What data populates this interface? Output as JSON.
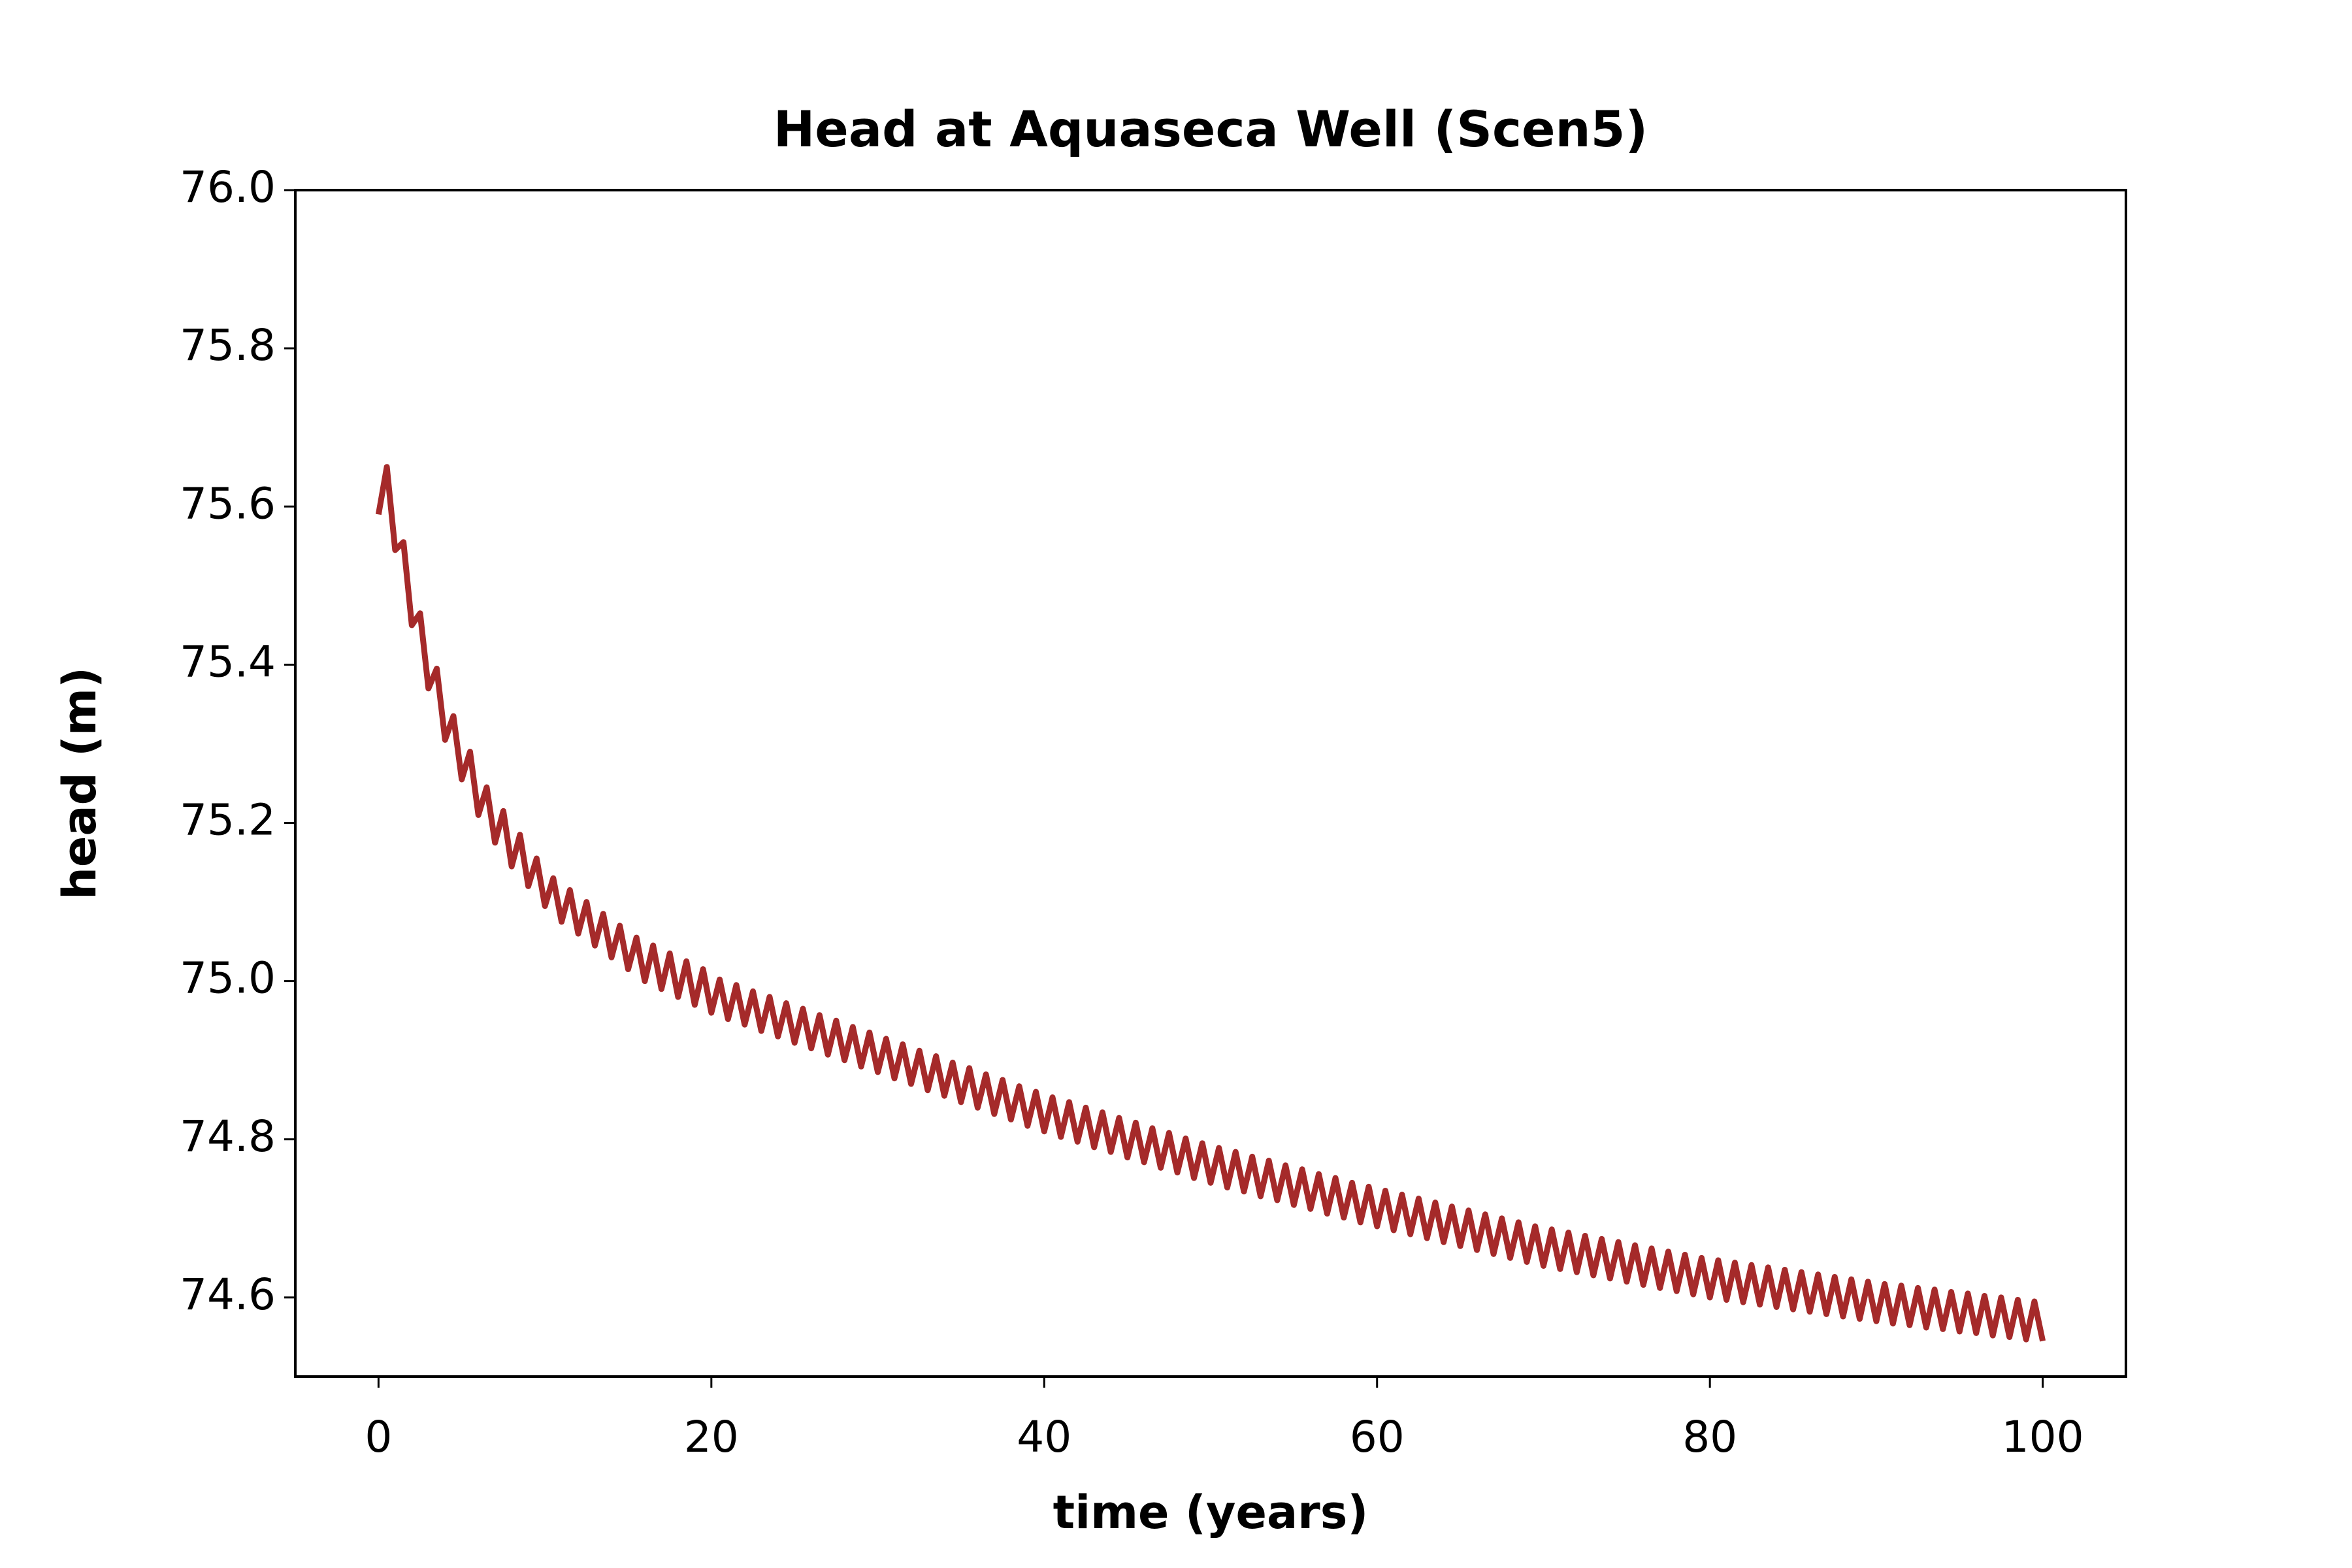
{
  "chart_data": {
    "type": "line",
    "title": "Head at Aquaseca Well (Scen5)",
    "xlabel": "time (years)",
    "ylabel": "head (m)",
    "color": "#a52a2a",
    "xlim": [
      -5,
      105
    ],
    "xticks": [
      0,
      20,
      40,
      60,
      80,
      100
    ],
    "ylim": [
      74.5,
      76.0
    ],
    "yticks": [
      74.6,
      74.8,
      {
        "value": 75.0,
        "label": "75.0"
      },
      75.2,
      75.4,
      75.6,
      75.8,
      {
        "value": 76.0,
        "label": "76.0"
      }
    ],
    "x": [
      0,
      0.5,
      1,
      1.5,
      2,
      2.5,
      3,
      3.5,
      4,
      4.5,
      5,
      5.5,
      6,
      6.5,
      7,
      7.5,
      8,
      8.5,
      9,
      9.5,
      10,
      10.5,
      11,
      11.5,
      12,
      12.5,
      13,
      13.5,
      14,
      14.5,
      15,
      15.5,
      16,
      16.5,
      17,
      17.5,
      18,
      18.5,
      19,
      19.5,
      20,
      20.5,
      21,
      21.5,
      22,
      22.5,
      23,
      23.5,
      24,
      24.5,
      25,
      25.5,
      26,
      26.5,
      27,
      27.5,
      28,
      28.5,
      29,
      29.5,
      30,
      30.5,
      31,
      31.5,
      32,
      32.5,
      33,
      33.5,
      34,
      34.5,
      35,
      35.5,
      36,
      36.5,
      37,
      37.5,
      38,
      38.5,
      39,
      39.5,
      40,
      40.5,
      41,
      41.5,
      42,
      42.5,
      43,
      43.5,
      44,
      44.5,
      45,
      45.5,
      46,
      46.5,
      47,
      47.5,
      48,
      48.5,
      49,
      49.5,
      50,
      50.5,
      51,
      51.5,
      52,
      52.5,
      53,
      53.5,
      54,
      54.5,
      55,
      55.5,
      56,
      56.5,
      57,
      57.5,
      58,
      58.5,
      59,
      59.5,
      60,
      60.5,
      61,
      61.5,
      62,
      62.5,
      63,
      63.5,
      64,
      64.5,
      65,
      65.5,
      66,
      66.5,
      67,
      67.5,
      68,
      68.5,
      69,
      69.5,
      70,
      70.5,
      71,
      71.5,
      72,
      72.5,
      73,
      73.5,
      74,
      74.5,
      75,
      75.5,
      76,
      76.5,
      77,
      77.5,
      78,
      78.5,
      79,
      79.5,
      80,
      80.5,
      81,
      81.5,
      82,
      82.5,
      83,
      83.5,
      84,
      84.5,
      85,
      85.5,
      86,
      86.5,
      87,
      87.5,
      88,
      88.5,
      89,
      89.5,
      90,
      90.5,
      91,
      91.5,
      92,
      92.5,
      93,
      93.5,
      94,
      94.5,
      95,
      95.5,
      96,
      96.5,
      97,
      97.5,
      98,
      98.5,
      99,
      99.5,
      100
    ],
    "values": [
      75.59,
      75.65,
      75.545,
      75.555,
      75.45,
      75.465,
      75.37,
      75.395,
      75.305,
      75.335,
      75.255,
      75.29,
      75.21,
      75.245,
      75.175,
      75.215,
      75.145,
      75.185,
      75.12,
      75.155,
      75.095,
      75.13,
      75.075,
      75.115,
      75.06,
      75.1,
      75.045,
      75.085,
      75.03,
      75.07,
      75.015,
      75.055,
      75.0,
      75.045,
      74.99,
      75.035,
      74.98,
      75.025,
      74.97,
      75.015,
      74.96,
      75.002,
      74.952,
      74.995,
      74.945,
      74.987,
      74.937,
      74.98,
      74.93,
      74.972,
      74.922,
      74.965,
      74.915,
      74.957,
      74.907,
      74.95,
      74.9,
      74.942,
      74.892,
      74.935,
      74.885,
      74.927,
      74.877,
      74.92,
      74.87,
      74.912,
      74.862,
      74.905,
      74.855,
      74.897,
      74.847,
      74.89,
      74.84,
      74.882,
      74.832,
      74.875,
      74.825,
      74.867,
      74.817,
      74.86,
      74.81,
      74.853,
      74.803,
      74.847,
      74.797,
      74.84,
      74.79,
      74.834,
      74.784,
      74.827,
      74.777,
      74.821,
      74.771,
      74.814,
      74.764,
      74.808,
      74.758,
      74.801,
      74.751,
      74.795,
      74.745,
      74.789,
      74.739,
      74.784,
      74.734,
      74.778,
      74.728,
      74.773,
      74.723,
      74.767,
      74.717,
      74.762,
      74.712,
      74.756,
      74.706,
      74.751,
      74.701,
      74.745,
      74.695,
      74.74,
      74.69,
      74.735,
      74.685,
      74.73,
      74.68,
      74.725,
      74.675,
      74.72,
      74.67,
      74.715,
      74.665,
      74.71,
      74.66,
      74.705,
      74.655,
      74.7,
      74.65,
      74.695,
      74.645,
      74.69,
      74.64,
      74.686,
      74.636,
      74.682,
      74.632,
      74.678,
      74.628,
      74.674,
      74.624,
      74.67,
      74.62,
      74.666,
      74.616,
      74.662,
      74.612,
      74.658,
      74.608,
      74.654,
      74.604,
      74.65,
      74.6,
      74.647,
      74.597,
      74.644,
      74.594,
      74.641,
      74.591,
      74.638,
      74.588,
      74.635,
      74.585,
      74.632,
      74.582,
      74.629,
      74.579,
      74.626,
      74.576,
      74.623,
      74.573,
      74.62,
      74.57,
      74.617,
      74.567,
      74.615,
      74.565,
      74.612,
      74.562,
      74.61,
      74.56,
      74.607,
      74.557,
      74.605,
      74.555,
      74.602,
      74.552,
      74.6,
      74.55,
      74.597,
      74.547,
      74.595,
      74.545
    ]
  }
}
